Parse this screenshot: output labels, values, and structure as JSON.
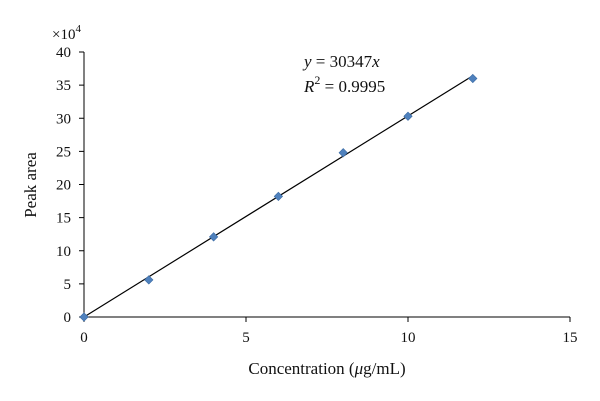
{
  "chart_data": {
    "type": "scatter",
    "title": "",
    "xlabel_prefix": "Concentration (",
    "xlabel_mu": "μ",
    "xlabel_suffix": "g/mL)",
    "ylabel": "Peak area",
    "y_multiplier_base": "×10",
    "y_multiplier_exp": "4",
    "xlim": [
      0,
      15
    ],
    "ylim": [
      0,
      40
    ],
    "x_ticks": [
      0,
      5,
      10,
      15
    ],
    "y_ticks": [
      0,
      5,
      10,
      15,
      20,
      25,
      30,
      35,
      40
    ],
    "grid": false,
    "legend": "none",
    "marker_color": "#4f81bd",
    "line_color": "#000000",
    "series": [
      {
        "x": [
          0,
          2,
          4,
          6,
          8,
          10,
          12
        ],
        "y": [
          0,
          5.6,
          12.1,
          18.2,
          24.8,
          30.3,
          36.0
        ]
      }
    ],
    "trendline": {
      "slope_scaled": 3.0347
    },
    "equation": {
      "y_var": "y",
      "eq_rest": " = 30347",
      "x_var": "x",
      "r_var": "R",
      "r_exp": "2",
      "r_rest": " = 0.9995"
    }
  }
}
